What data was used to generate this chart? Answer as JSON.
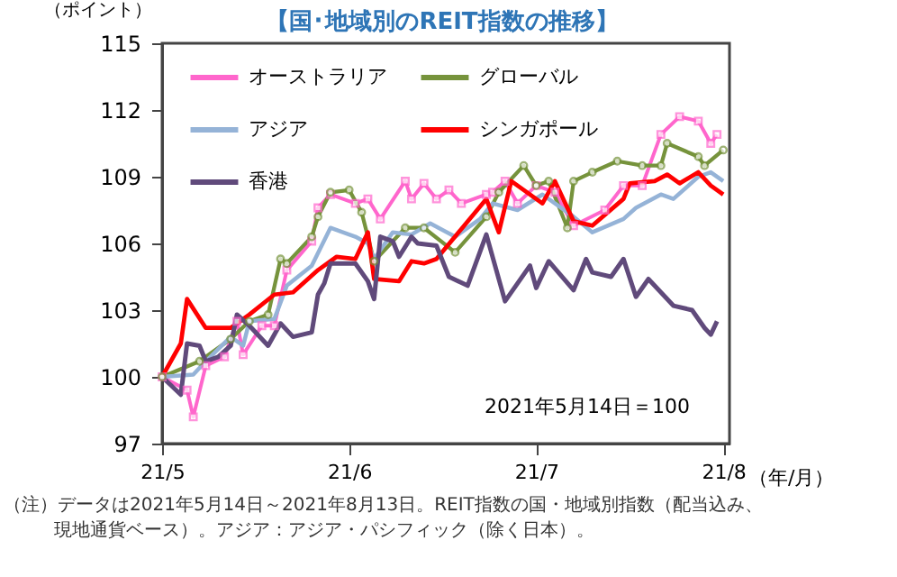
{
  "chart_data": {
    "type": "line",
    "title": "【国･地域別のREIT指数の推移】",
    "ylabel": "（ポイント）",
    "xlabel": "（年/月）",
    "xlim": [
      "2021-05-14",
      "2021-08-13"
    ],
    "xticks": [
      {
        "value": "2021-05-14",
        "label": "21/5"
      },
      {
        "value": "2021-06-13",
        "label": "21/6"
      },
      {
        "value": "2021-07-13",
        "label": "21/7"
      },
      {
        "value": "2021-08-12",
        "label": "21/8"
      }
    ],
    "ylim": [
      97,
      115
    ],
    "yticks": [
      97,
      100,
      103,
      106,
      109,
      112,
      115
    ],
    "grid": false,
    "legend": "top left",
    "series": [
      {
        "name": "オーストラリア",
        "color": "#ff66cc",
        "marker": "square",
        "x": [
          "2021-05-14",
          "2021-05-18",
          "2021-05-19",
          "2021-05-21",
          "2021-05-24",
          "2021-05-26",
          "2021-05-27",
          "2021-05-30",
          "2021-06-01",
          "2021-06-03",
          "2021-06-07",
          "2021-06-08",
          "2021-06-10",
          "2021-06-14",
          "2021-06-16",
          "2021-06-18",
          "2021-06-22",
          "2021-06-23",
          "2021-06-25",
          "2021-06-27",
          "2021-06-29",
          "2021-07-01",
          "2021-07-05",
          "2021-07-06",
          "2021-07-08",
          "2021-07-10",
          "2021-07-13",
          "2021-07-16",
          "2021-07-19",
          "2021-07-24",
          "2021-07-27",
          "2021-07-30",
          "2021-08-02",
          "2021-08-05",
          "2021-08-08",
          "2021-08-10",
          "2021-08-11"
        ],
        "values": [
          100,
          99.4,
          98.2,
          100.5,
          100.9,
          102.5,
          101,
          102.3,
          102.3,
          104.8,
          106.1,
          107.6,
          108.2,
          107.8,
          108,
          107.1,
          108.8,
          108,
          108.7,
          108,
          108.4,
          107.8,
          108.2,
          108.3,
          108.8,
          107.8,
          108.6,
          108.3,
          106.8,
          107.5,
          108.6,
          108.6,
          110.9,
          111.7,
          111.5,
          110.5,
          110.9
        ]
      },
      {
        "name": "グローバル",
        "color": "#76933c",
        "marker": "circle",
        "x": [
          "2021-05-14",
          "2021-05-20",
          "2021-05-25",
          "2021-05-28",
          "2021-05-31",
          "2021-06-02",
          "2021-06-03",
          "2021-06-07",
          "2021-06-08",
          "2021-06-10",
          "2021-06-13",
          "2021-06-15",
          "2021-06-17",
          "2021-06-22",
          "2021-06-25",
          "2021-06-30",
          "2021-07-05",
          "2021-07-07",
          "2021-07-11",
          "2021-07-13",
          "2021-07-15",
          "2021-07-18",
          "2021-07-19",
          "2021-07-22",
          "2021-07-26",
          "2021-07-30",
          "2021-08-02",
          "2021-08-03",
          "2021-08-08",
          "2021-08-09",
          "2021-08-12"
        ],
        "values": [
          100,
          100.7,
          101.7,
          102.5,
          102.8,
          105.3,
          105.1,
          106.3,
          107.2,
          108.3,
          108.4,
          107.4,
          105.2,
          106.7,
          106.7,
          105.6,
          107.2,
          108.3,
          109.5,
          108.6,
          108.8,
          106.7,
          108.8,
          109.2,
          109.7,
          109.5,
          109.5,
          110.5,
          109.9,
          109.5,
          110.2
        ]
      },
      {
        "name": "アジア",
        "color": "#95b3d7",
        "marker": "none",
        "x": [
          "2021-05-14",
          "2021-05-19",
          "2021-05-21",
          "2021-05-25",
          "2021-05-27",
          "2021-05-28",
          "2021-06-01",
          "2021-06-03",
          "2021-06-07",
          "2021-06-10",
          "2021-06-14",
          "2021-06-16",
          "2021-06-17",
          "2021-06-20",
          "2021-06-23",
          "2021-06-26",
          "2021-06-30",
          "2021-07-04",
          "2021-07-06",
          "2021-07-10",
          "2021-07-14",
          "2021-07-19",
          "2021-07-22",
          "2021-07-27",
          "2021-07-29",
          "2021-08-02",
          "2021-08-04",
          "2021-08-08",
          "2021-08-10",
          "2021-08-12"
        ],
        "values": [
          100,
          100.1,
          100.7,
          101.8,
          101.4,
          102.5,
          102.6,
          104.1,
          105,
          106.7,
          106.3,
          106,
          105.3,
          106.5,
          106.4,
          106.9,
          106.3,
          107.1,
          107.8,
          107.5,
          108.2,
          107.2,
          106.5,
          107.1,
          107.6,
          108.2,
          108,
          109,
          109.2,
          108.8
        ]
      },
      {
        "name": "シンガポール",
        "color": "#ff0000",
        "marker": "none",
        "x": [
          "2021-05-14",
          "2021-05-17",
          "2021-05-18",
          "2021-05-21",
          "2021-05-25",
          "2021-05-28",
          "2021-06-01",
          "2021-06-04",
          "2021-06-08",
          "2021-06-11",
          "2021-06-14",
          "2021-06-16",
          "2021-06-17",
          "2021-06-21",
          "2021-06-23",
          "2021-06-25",
          "2021-06-27",
          "2021-07-05",
          "2021-07-07",
          "2021-07-09",
          "2021-07-14",
          "2021-07-16",
          "2021-07-19",
          "2021-07-22",
          "2021-07-27",
          "2021-07-28",
          "2021-08-01",
          "2021-08-03",
          "2021-08-05",
          "2021-08-08",
          "2021-08-10",
          "2021-08-12"
        ],
        "values": [
          100,
          101.5,
          103.5,
          102.2,
          102.2,
          102.8,
          103.7,
          103.8,
          104.8,
          105.4,
          105.3,
          106.5,
          104.4,
          104.3,
          105.2,
          105.1,
          105.3,
          108,
          106.5,
          108.8,
          107.8,
          108.8,
          107,
          106.8,
          108,
          108.7,
          108.8,
          109.1,
          108.7,
          109.2,
          108.6,
          108.2
        ]
      },
      {
        "name": "香港",
        "color": "#604a7b",
        "marker": "none",
        "x": [
          "2021-05-14",
          "2021-05-17",
          "2021-05-18",
          "2021-05-20",
          "2021-05-21",
          "2021-05-23",
          "2021-05-25",
          "2021-05-26",
          "2021-05-28",
          "2021-05-31",
          "2021-06-02",
          "2021-06-04",
          "2021-06-07",
          "2021-06-08",
          "2021-06-09",
          "2021-06-10",
          "2021-06-14",
          "2021-06-16",
          "2021-06-17",
          "2021-06-18",
          "2021-06-20",
          "2021-06-21",
          "2021-06-23",
          "2021-06-24",
          "2021-06-27",
          "2021-06-29",
          "2021-07-02",
          "2021-07-05",
          "2021-07-08",
          "2021-07-12",
          "2021-07-13",
          "2021-07-15",
          "2021-07-19",
          "2021-07-21",
          "2021-07-22",
          "2021-07-25",
          "2021-07-27",
          "2021-07-29",
          "2021-07-31",
          "2021-08-04",
          "2021-08-07",
          "2021-08-09",
          "2021-08-10",
          "2021-08-11"
        ],
        "values": [
          100,
          99.2,
          101.5,
          101.4,
          100.7,
          100.9,
          101.4,
          102.8,
          102.3,
          101.4,
          102.4,
          101.8,
          102,
          103.7,
          104.2,
          105.1,
          105.1,
          104.3,
          103.5,
          106.3,
          106.1,
          105.4,
          106.3,
          106,
          105.9,
          104.5,
          104.1,
          106.4,
          103.4,
          105,
          104,
          105.2,
          103.9,
          105.3,
          104.7,
          104.5,
          105.3,
          103.6,
          104.4,
          103.2,
          103,
          102.2,
          101.9,
          102.5
        ]
      }
    ],
    "annotations": [
      "2021年5月14日＝100",
      "（注）データは2021年5月14日～2021年8月13日。REIT指数の国・地域別指数（配当込み、現地通貨ベース）。アジア：アジア・パシフィック（除く日本）。"
    ]
  }
}
